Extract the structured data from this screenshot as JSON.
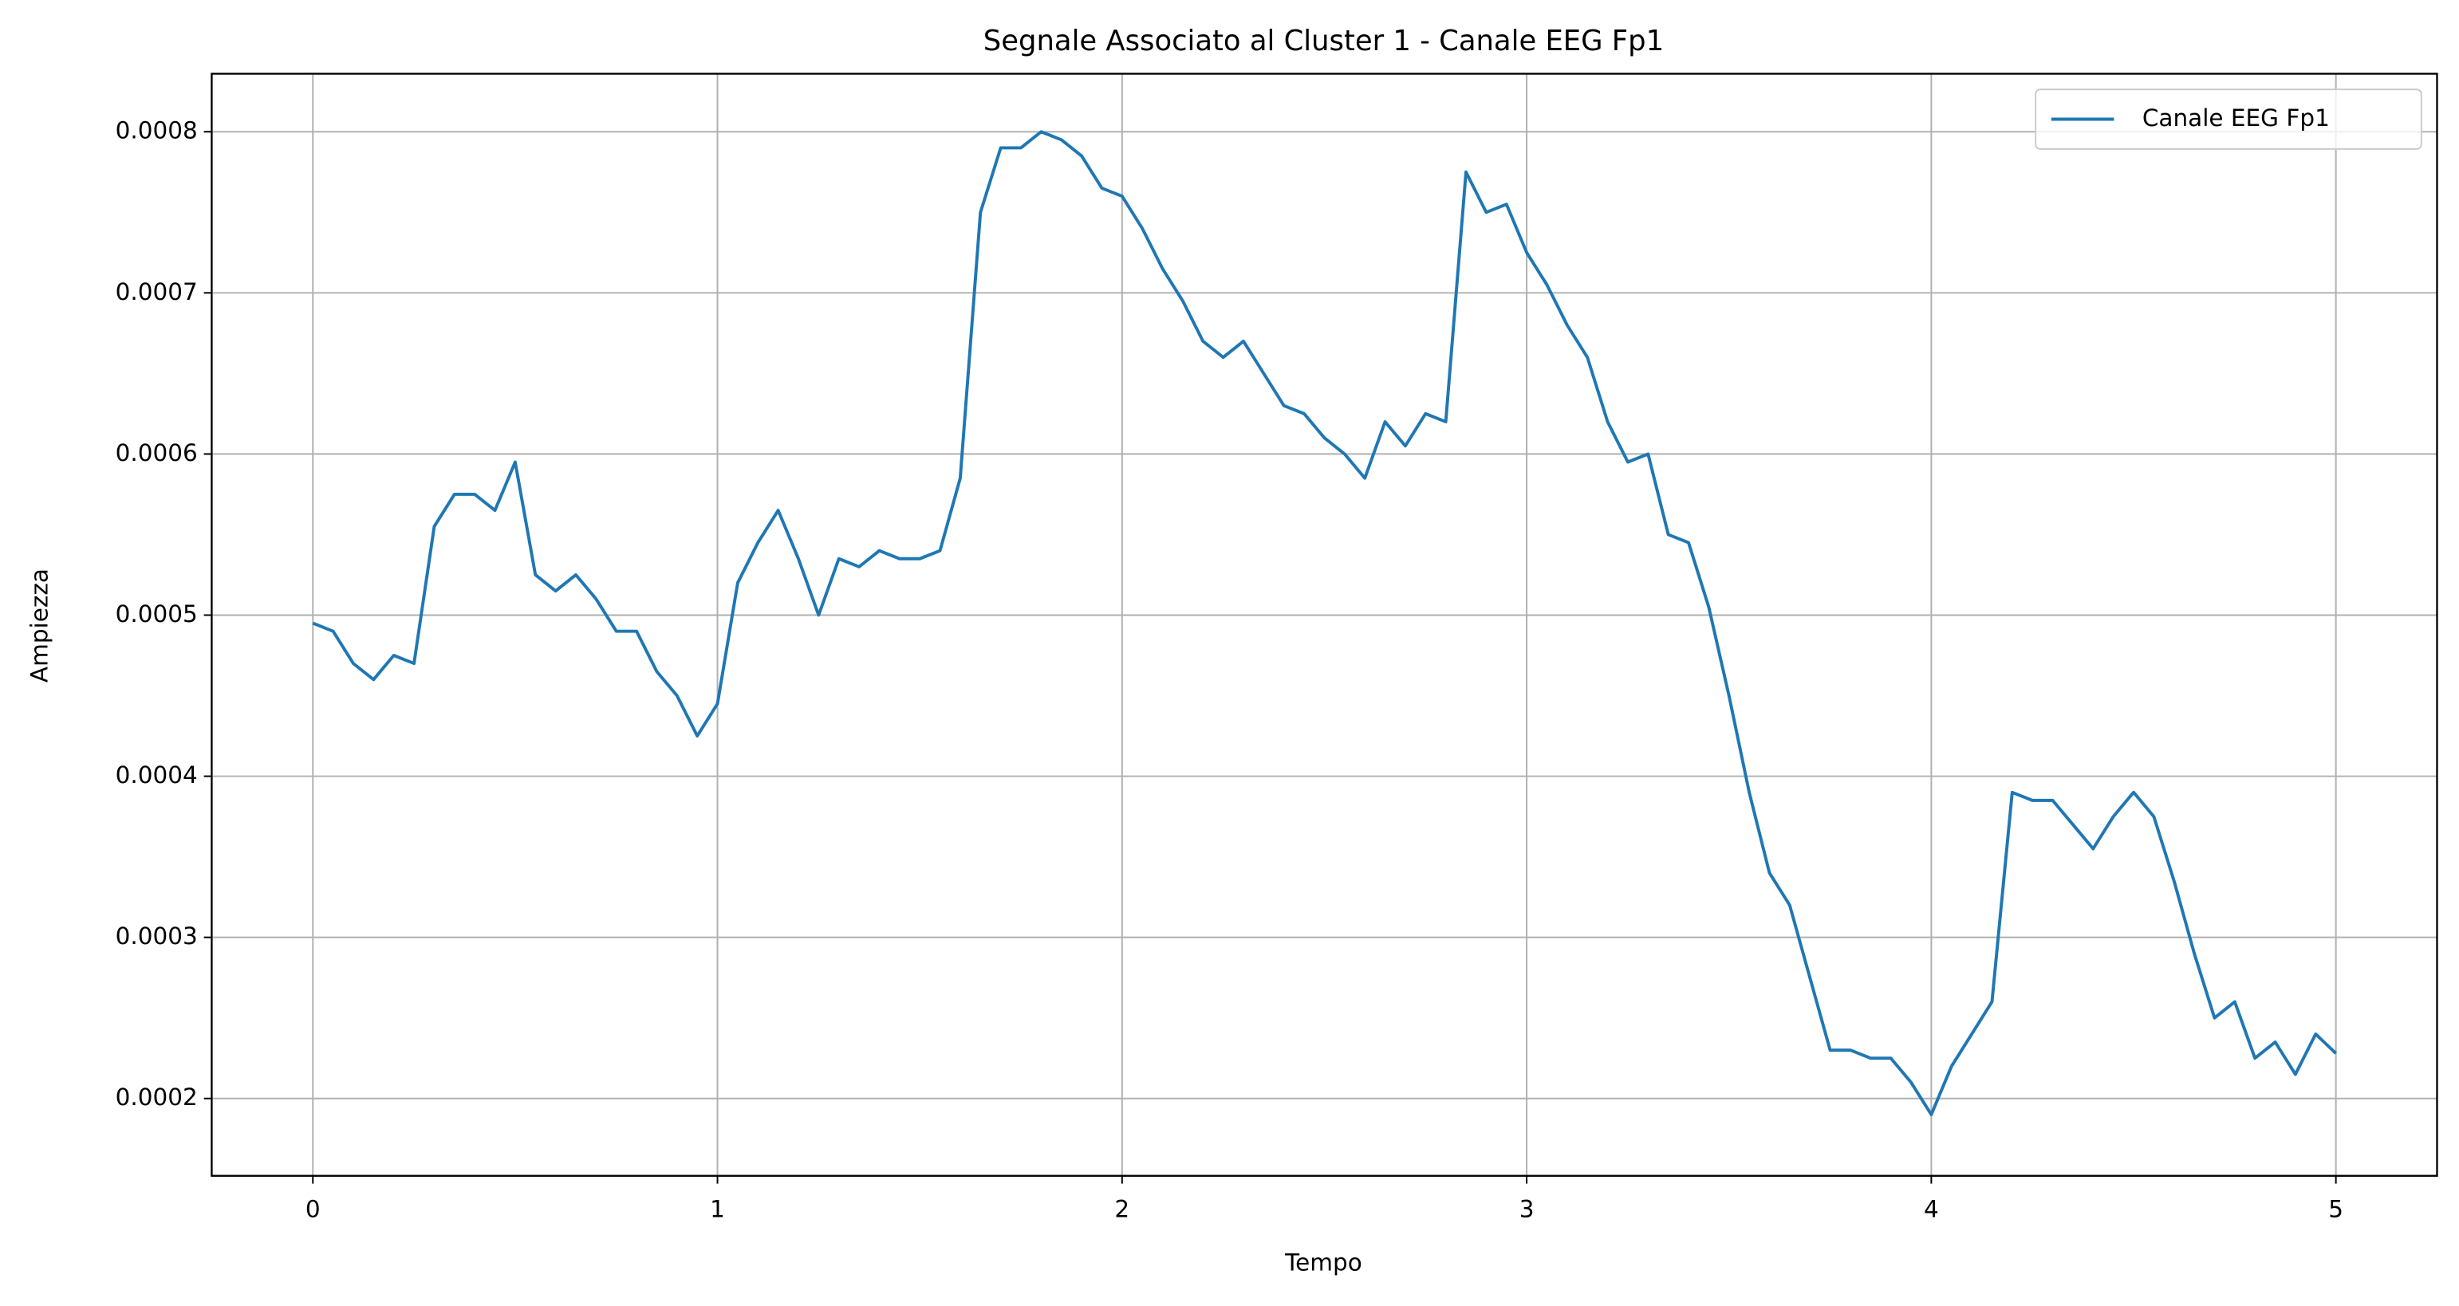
{
  "chart_data": {
    "type": "line",
    "title": "Segnale Associato al Cluster 1 - Canale EEG Fp1",
    "x_label": "Tempo",
    "y_label": "Ampiezza",
    "x": [
      0,
      0.05,
      0.1,
      0.15,
      0.2,
      0.25,
      0.3,
      0.35,
      0.4,
      0.45,
      0.5,
      0.55,
      0.6,
      0.65,
      0.7,
      0.75,
      0.8,
      0.85,
      0.9,
      0.95,
      1,
      1.05,
      1.1,
      1.15,
      1.2,
      1.25,
      1.3,
      1.35,
      1.4,
      1.45,
      1.5,
      1.55,
      1.6,
      1.65,
      1.7,
      1.75,
      1.8,
      1.85,
      1.9,
      1.95,
      2,
      2.05,
      2.1,
      2.15,
      2.2,
      2.25,
      2.3,
      2.35,
      2.4,
      2.45,
      2.5,
      2.55,
      2.6,
      2.65,
      2.7,
      2.75,
      2.8,
      2.85,
      2.9,
      2.95,
      3,
      3.05,
      3.1,
      3.15,
      3.2,
      3.25,
      3.3,
      3.35,
      3.4,
      3.45,
      3.5,
      3.55,
      3.6,
      3.65,
      3.7,
      3.75,
      3.8,
      3.85,
      3.9,
      3.95,
      4,
      4.05,
      4.1,
      4.15,
      4.2,
      4.25,
      4.3,
      4.35,
      4.4,
      4.45,
      4.5,
      4.55,
      4.6,
      4.65,
      4.7,
      4.75,
      4.8,
      4.85,
      4.9,
      4.95,
      5
    ],
    "series": [
      {
        "name": "Canale EEG Fp1",
        "color": "#1f77b4",
        "values": [
          0.000495,
          0.00049,
          0.00047,
          0.00046,
          0.000475,
          0.00047,
          0.000555,
          0.000575,
          0.000575,
          0.000565,
          0.000595,
          0.000525,
          0.000515,
          0.000525,
          0.00051,
          0.00049,
          0.00049,
          0.000465,
          0.00045,
          0.000425,
          0.000445,
          0.00052,
          0.000545,
          0.000565,
          0.000535,
          0.0005,
          0.000535,
          0.00053,
          0.00054,
          0.000535,
          0.000535,
          0.00054,
          0.000585,
          0.00075,
          0.00079,
          0.00079,
          0.0008,
          0.000795,
          0.000785,
          0.000765,
          0.00076,
          0.00074,
          0.000715,
          0.000695,
          0.00067,
          0.00066,
          0.00067,
          0.00065,
          0.00063,
          0.000625,
          0.00061,
          0.0006,
          0.000585,
          0.00062,
          0.000605,
          0.000625,
          0.00062,
          0.000775,
          0.00075,
          0.000755,
          0.000725,
          0.000705,
          0.00068,
          0.00066,
          0.00062,
          0.000595,
          0.0006,
          0.00055,
          0.000545,
          0.000505,
          0.00045,
          0.00039,
          0.00034,
          0.00032,
          0.000275,
          0.00023,
          0.00023,
          0.000225,
          0.000225,
          0.00021,
          0.00019,
          0.00022,
          0.00024,
          0.00026,
          0.00039,
          0.000385,
          0.000385,
          0.00037,
          0.000355,
          0.000375,
          0.00039,
          0.000375,
          0.000335,
          0.00029,
          0.00025,
          0.00026,
          0.000225,
          0.000235,
          0.000215,
          0.00024,
          0.000228
        ]
      }
    ],
    "xlim": [
      -0.25,
      5.25
    ],
    "xticks": [
      0,
      1,
      2,
      3,
      4,
      5
    ],
    "ylim": [
      0.000152,
      0.000836
    ],
    "yticks": [
      0.0002,
      0.0003,
      0.0004,
      0.0005,
      0.0006,
      0.0007,
      0.0008
    ],
    "grid": true,
    "legend": "upper right"
  }
}
